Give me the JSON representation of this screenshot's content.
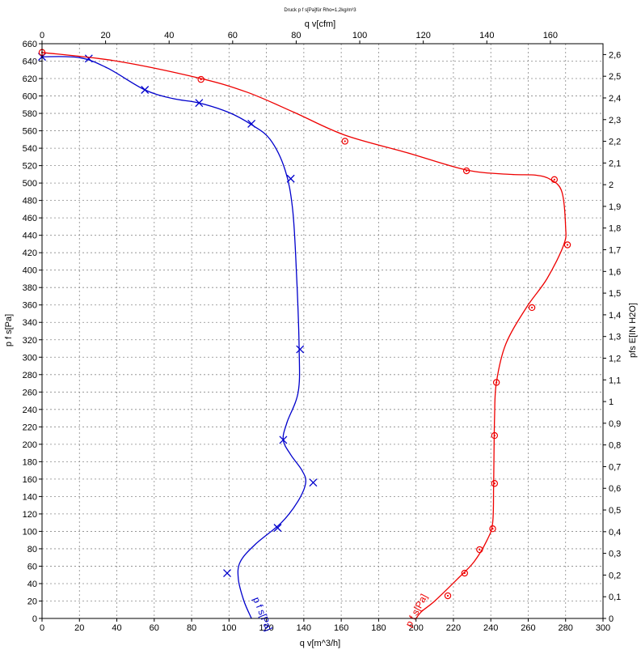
{
  "chart_data": {
    "type": "line",
    "title": "Druck p f s[Pa]für Rho=1,2kg/m³3",
    "xlabel": "q v[m^3/h]",
    "x2label": "q v[cfm]",
    "ylabel": "p f s[Pa]",
    "y2label": "pfs  E[IN H2O]",
    "xlim": [
      0,
      300
    ],
    "x2lim": [
      0,
      176.57
    ],
    "ylim": [
      0,
      660
    ],
    "y2lim": [
      0,
      2.65
    ],
    "x_ticks": [
      0,
      20,
      40,
      60,
      80,
      100,
      120,
      140,
      160,
      180,
      200,
      220,
      240,
      260,
      280,
      300
    ],
    "x2_ticks": [
      0,
      20,
      40,
      60,
      80,
      100,
      120,
      140,
      160
    ],
    "y_ticks": [
      0,
      20,
      40,
      60,
      80,
      100,
      120,
      140,
      160,
      180,
      200,
      220,
      240,
      260,
      280,
      300,
      320,
      340,
      360,
      380,
      400,
      420,
      440,
      460,
      480,
      500,
      520,
      540,
      560,
      580,
      600,
      620,
      640,
      660
    ],
    "y2_ticks": [
      "0",
      "0,1",
      "0,2",
      "0,3",
      "0,4",
      "0,5",
      "0,6",
      "0,7",
      "0,8",
      "0,9",
      "1",
      "1,1",
      "1,2",
      "1,3",
      "1,4",
      "1,5",
      "1,6",
      "1,7",
      "1,8",
      "1,9",
      "2",
      "2,1",
      "2,2",
      "2,3",
      "2,4",
      "2,5",
      "2,6"
    ],
    "grid": true,
    "series": [
      {
        "name": "p f s[Pa]",
        "color": "#0000cc",
        "marker": "x",
        "points": [
          [
            0,
            645
          ],
          [
            25,
            643
          ],
          [
            55,
            607
          ],
          [
            84,
            592
          ],
          [
            112,
            568
          ],
          [
            133,
            505
          ],
          [
            138,
            309
          ],
          [
            129,
            205
          ],
          [
            145,
            156
          ],
          [
            126,
            104
          ],
          [
            99,
            52
          ]
        ],
        "curve": [
          [
            0,
            645
          ],
          [
            20,
            644
          ],
          [
            35,
            632
          ],
          [
            55,
            607
          ],
          [
            70,
            597
          ],
          [
            84,
            592
          ],
          [
            100,
            581
          ],
          [
            112,
            567
          ],
          [
            122,
            550
          ],
          [
            130,
            515
          ],
          [
            134,
            470
          ],
          [
            136,
            400
          ],
          [
            137.5,
            309
          ],
          [
            137,
            260
          ],
          [
            131,
            225
          ],
          [
            129,
            205
          ],
          [
            133,
            188
          ],
          [
            139,
            170
          ],
          [
            141,
            156
          ],
          [
            137,
            135
          ],
          [
            128,
            110
          ],
          [
            114,
            85
          ],
          [
            106,
            65
          ],
          [
            105,
            45
          ],
          [
            108,
            20
          ],
          [
            112,
            0
          ]
        ],
        "label": "p f s[Pa]"
      },
      {
        "name": "p f s[Pa]",
        "color": "#ee0000",
        "marker": "circle",
        "points": [
          [
            0,
            650
          ],
          [
            85,
            619
          ],
          [
            162,
            548
          ],
          [
            227,
            514
          ],
          [
            274,
            504
          ],
          [
            281,
            429
          ],
          [
            262,
            357
          ],
          [
            243,
            271
          ],
          [
            242,
            210
          ],
          [
            242,
            155
          ],
          [
            241,
            103
          ],
          [
            234,
            79
          ],
          [
            226,
            52
          ],
          [
            217,
            26
          ]
        ],
        "curve": [
          [
            0,
            650
          ],
          [
            40,
            640
          ],
          [
            85,
            620
          ],
          [
            110,
            604
          ],
          [
            135,
            581
          ],
          [
            162,
            555
          ],
          [
            195,
            535
          ],
          [
            227,
            515
          ],
          [
            250,
            510
          ],
          [
            264,
            509
          ],
          [
            272,
            504
          ],
          [
            278,
            490
          ],
          [
            280,
            450
          ],
          [
            279,
            429
          ],
          [
            270,
            390
          ],
          [
            259,
            357
          ],
          [
            248,
            315
          ],
          [
            243,
            271
          ],
          [
            242,
            230
          ],
          [
            241.5,
            155
          ],
          [
            241,
            110
          ],
          [
            238,
            90
          ],
          [
            231,
            65
          ],
          [
            222,
            45
          ],
          [
            210,
            20
          ],
          [
            203,
            8
          ],
          [
            200,
            0
          ]
        ],
        "label": "p f s[Pa]"
      }
    ]
  }
}
